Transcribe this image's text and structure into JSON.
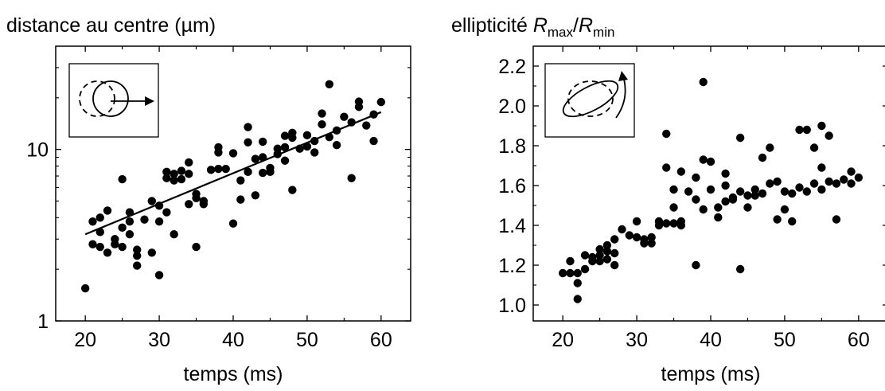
{
  "chart_data": [
    {
      "type": "scatter",
      "title": "distance au centre (µm)",
      "xlabel": "temps (ms)",
      "ylabel": "",
      "xlim": [
        16,
        64
      ],
      "ylim": [
        1,
        40
      ],
      "yscale": "log",
      "x_ticks": [
        20,
        30,
        40,
        50,
        60
      ],
      "x_tick_labels": [
        "20",
        "30",
        "40",
        "50",
        "60"
      ],
      "y_ticks": [
        1,
        10
      ],
      "y_tick_labels": [
        "1",
        "10"
      ],
      "grid": false,
      "inset_icon": "circle-displacement-icon",
      "fit_line": {
        "x": [
          20,
          60
        ],
        "y": [
          3.2,
          16.5
        ]
      },
      "series": [
        {
          "marker": "filled-circle",
          "color": "#000000",
          "points": [
            [
              20,
              1.55
            ],
            [
              21,
              2.8
            ],
            [
              21,
              3.8
            ],
            [
              22,
              2.7
            ],
            [
              22,
              4.0
            ],
            [
              22,
              3.3
            ],
            [
              23,
              2.5
            ],
            [
              23,
              4.4
            ],
            [
              24,
              2.8
            ],
            [
              24,
              3.0
            ],
            [
              25,
              3.5
            ],
            [
              25,
              2.7
            ],
            [
              25,
              6.7
            ],
            [
              26,
              3.2
            ],
            [
              26,
              3.8
            ],
            [
              26,
              4.3
            ],
            [
              27,
              2.4
            ],
            [
              27,
              2.1
            ],
            [
              27,
              2.6
            ],
            [
              28,
              3.9
            ],
            [
              29,
              2.5
            ],
            [
              29,
              5.0
            ],
            [
              30,
              1.85
            ],
            [
              30,
              4.7
            ],
            [
              30,
              3.8
            ],
            [
              31,
              7.4
            ],
            [
              31,
              6.8
            ],
            [
              31,
              4.3
            ],
            [
              32,
              7.2
            ],
            [
              32,
              6.6
            ],
            [
              32,
              3.2
            ],
            [
              33,
              6.7
            ],
            [
              33,
              7.5
            ],
            [
              34,
              7.2
            ],
            [
              34,
              4.8
            ],
            [
              34,
              8.4
            ],
            [
              35,
              2.7
            ],
            [
              35,
              5.5
            ],
            [
              35,
              5.2
            ],
            [
              36,
              5.0
            ],
            [
              36,
              4.8
            ],
            [
              37,
              7.6
            ],
            [
              38,
              10.3
            ],
            [
              38,
              9.6
            ],
            [
              38,
              7.7
            ],
            [
              39,
              7.7
            ],
            [
              40,
              9.5
            ],
            [
              40,
              3.7
            ],
            [
              41,
              6.6
            ],
            [
              41,
              5.1
            ],
            [
              42,
              11.0
            ],
            [
              42,
              13.5
            ],
            [
              42,
              7.4
            ],
            [
              43,
              5.4
            ],
            [
              43,
              8.8
            ],
            [
              44,
              7.3
            ],
            [
              44,
              11.1
            ],
            [
              44,
              9.0
            ],
            [
              45,
              7.4
            ],
            [
              45,
              7.8
            ],
            [
              46,
              9.4
            ],
            [
              46,
              10.1
            ],
            [
              47,
              12.0
            ],
            [
              47,
              10.3
            ],
            [
              47,
              8.6
            ],
            [
              48,
              5.8
            ],
            [
              48,
              12.5
            ],
            [
              48,
              11.7
            ],
            [
              49,
              10.1
            ],
            [
              50,
              12.1
            ],
            [
              50,
              10.4
            ],
            [
              51,
              11.2
            ],
            [
              51,
              9.6
            ],
            [
              52,
              16.2
            ],
            [
              52,
              14.0
            ],
            [
              53,
              24.0
            ],
            [
              53,
              11.8
            ],
            [
              54,
              12.9
            ],
            [
              54,
              10.6
            ],
            [
              55,
              15.5
            ],
            [
              56,
              6.8
            ],
            [
              56,
              14.4
            ],
            [
              57,
              19.0
            ],
            [
              57,
              17.7
            ],
            [
              58,
              13.8
            ],
            [
              59,
              16.0
            ],
            [
              59,
              11.2
            ],
            [
              60,
              18.9
            ]
          ]
        }
      ]
    },
    {
      "type": "scatter",
      "title_parts": [
        "ellipticité ",
        "R",
        "max",
        "/",
        "R",
        "min"
      ],
      "xlabel": "temps (ms)",
      "ylabel": "",
      "xlim": [
        16,
        64
      ],
      "ylim": [
        0.92,
        2.3
      ],
      "yscale": "linear",
      "x_ticks": [
        20,
        30,
        40,
        50,
        60
      ],
      "x_tick_labels": [
        "20",
        "30",
        "40",
        "50",
        "60"
      ],
      "y_ticks": [
        1.0,
        1.2,
        1.4,
        1.6,
        1.8,
        2.0,
        2.2
      ],
      "y_tick_labels": [
        "1.0",
        "1.2",
        "1.4",
        "1.6",
        "1.8",
        "2.0",
        "2.2"
      ],
      "grid": false,
      "inset_icon": "ellipse-rotation-icon",
      "series": [
        {
          "marker": "filled-circle",
          "color": "#000000",
          "points": [
            [
              20,
              1.16
            ],
            [
              21,
              1.16
            ],
            [
              21,
              1.22
            ],
            [
              22,
              1.16
            ],
            [
              22,
              1.11
            ],
            [
              22,
              1.03
            ],
            [
              23,
              1.18
            ],
            [
              23,
              1.25
            ],
            [
              24,
              1.22
            ],
            [
              24,
              1.24
            ],
            [
              25,
              1.22
            ],
            [
              25,
              1.25
            ],
            [
              25,
              1.28
            ],
            [
              26,
              1.23
            ],
            [
              26,
              1.27
            ],
            [
              26,
              1.3
            ],
            [
              27,
              1.2
            ],
            [
              27,
              1.26
            ],
            [
              27,
              1.33
            ],
            [
              28,
              1.38
            ],
            [
              29,
              1.35
            ],
            [
              30,
              1.34
            ],
            [
              30,
              1.42
            ],
            [
              31,
              1.33
            ],
            [
              31,
              1.31
            ],
            [
              32,
              1.34
            ],
            [
              32,
              1.31
            ],
            [
              33,
              1.4
            ],
            [
              33,
              1.42
            ],
            [
              34,
              1.86
            ],
            [
              34,
              1.69
            ],
            [
              34,
              1.41
            ],
            [
              35,
              1.49
            ],
            [
              35,
              1.41
            ],
            [
              35,
              1.58
            ],
            [
              36,
              1.42
            ],
            [
              36,
              1.4
            ],
            [
              36,
              1.67
            ],
            [
              37,
              1.57
            ],
            [
              38,
              1.64
            ],
            [
              38,
              1.2
            ],
            [
              38,
              1.53
            ],
            [
              39,
              2.12
            ],
            [
              39,
              1.73
            ],
            [
              39,
              1.48
            ],
            [
              40,
              1.72
            ],
            [
              40,
              1.58
            ],
            [
              41,
              1.49
            ],
            [
              41,
              1.44
            ],
            [
              42,
              1.66
            ],
            [
              42,
              1.6
            ],
            [
              42,
              1.52
            ],
            [
              43,
              1.53
            ],
            [
              43,
              1.54
            ],
            [
              44,
              1.84
            ],
            [
              44,
              1.18
            ],
            [
              44,
              1.57
            ],
            [
              45,
              1.55
            ],
            [
              45,
              1.49
            ],
            [
              46,
              1.58
            ],
            [
              46,
              1.55
            ],
            [
              47,
              1.74
            ],
            [
              47,
              1.56
            ],
            [
              48,
              1.79
            ],
            [
              48,
              1.61
            ],
            [
              49,
              1.43
            ],
            [
              49,
              1.62
            ],
            [
              50,
              1.57
            ],
            [
              50,
              1.48
            ],
            [
              51,
              1.56
            ],
            [
              51,
              1.42
            ],
            [
              52,
              1.88
            ],
            [
              52,
              1.59
            ],
            [
              53,
              1.88
            ],
            [
              53,
              1.57
            ],
            [
              54,
              1.79
            ],
            [
              54,
              1.61
            ],
            [
              55,
              1.9
            ],
            [
              55,
              1.69
            ],
            [
              55,
              1.58
            ],
            [
              56,
              1.85
            ],
            [
              56,
              1.62
            ],
            [
              57,
              1.43
            ],
            [
              57,
              1.61
            ],
            [
              58,
              1.63
            ],
            [
              59,
              1.67
            ],
            [
              59,
              1.61
            ],
            [
              60,
              1.64
            ]
          ]
        }
      ]
    }
  ]
}
